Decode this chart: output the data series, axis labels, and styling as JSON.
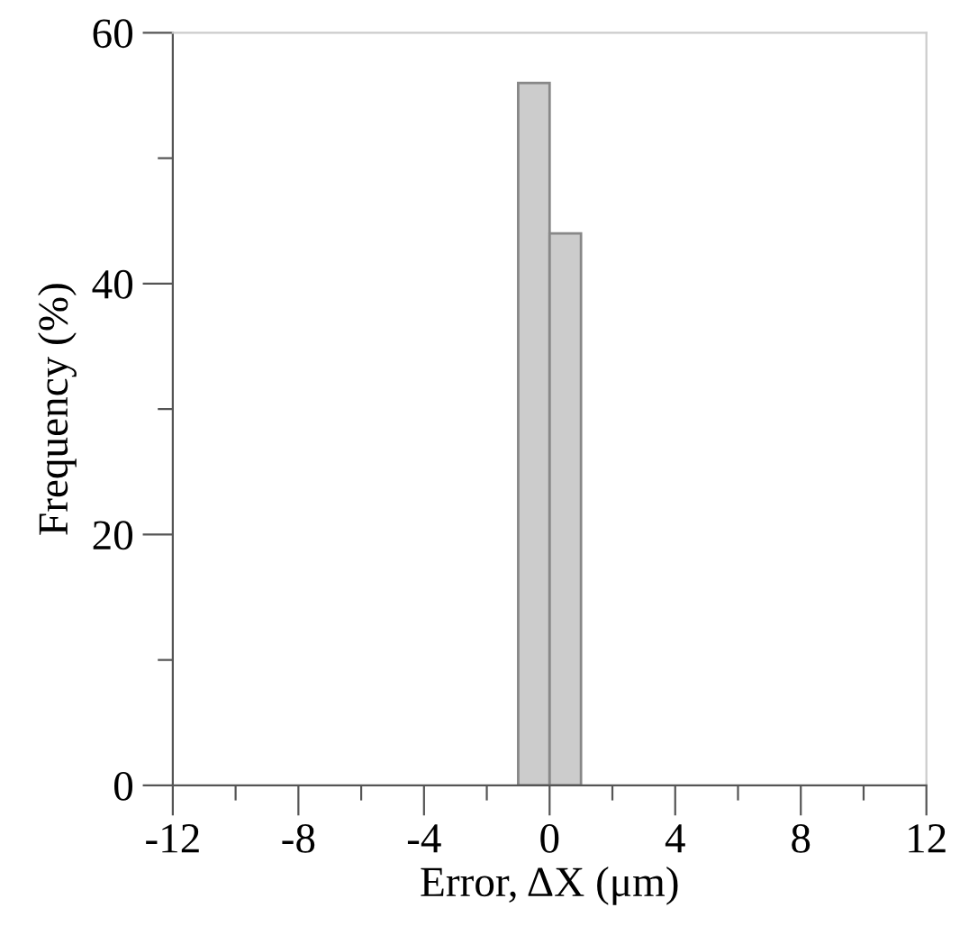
{
  "chart_data": {
    "type": "histogram",
    "xlabel": "Error, ΔX (μm)",
    "ylabel": "Frequency (%)",
    "bins": [
      -1,
      0,
      1
    ],
    "values": [
      56,
      44
    ],
    "color": "#cccccc",
    "xlim": [
      -12,
      12
    ],
    "ylim": [
      0,
      60
    ],
    "xticks": [
      {
        "value": -12,
        "label": "-12"
      },
      {
        "value": -10,
        "label": null
      },
      {
        "value": -8,
        "label": "-8"
      },
      {
        "value": -6,
        "label": null
      },
      {
        "value": -4,
        "label": "-4"
      },
      {
        "value": -2,
        "label": null
      },
      0,
      {
        "value": 2,
        "label": null
      },
      4,
      {
        "value": 6,
        "label": null
      },
      8,
      {
        "value": 10,
        "label": null
      },
      12
    ],
    "yticks": [
      0,
      {
        "value": 10,
        "label": null
      },
      20,
      {
        "value": 30,
        "label": null
      },
      40,
      {
        "value": 50,
        "label": null
      },
      60
    ],
    "grid": false,
    "legend": false
  }
}
